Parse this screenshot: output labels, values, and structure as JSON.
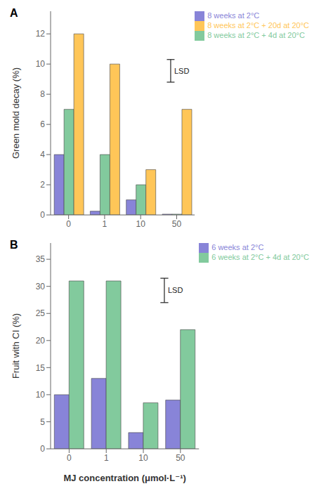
{
  "chart_data": [
    {
      "type": "bar",
      "title": "A",
      "y_label": "Green mold decay (%)",
      "categories": [
        "0",
        "1",
        "10",
        "50"
      ],
      "series": [
        {
          "name": "8 weeks at 2°C",
          "color": "#8884d8",
          "values": [
            4.0,
            0.25,
            1.0,
            0.05
          ]
        },
        {
          "name": "8 weeks at 2°C + 4d at 20°C",
          "color": "#82ca9d",
          "values": [
            7.0,
            4.0,
            2.0,
            0.05
          ]
        },
        {
          "name": "8 weeks at 2°C + 20d at 20°C",
          "color": "#ffc658",
          "values": [
            12.0,
            10.0,
            3.0,
            7.0
          ]
        }
      ],
      "ylim": [
        0,
        13.5
      ],
      "yticks": [
        0,
        2,
        4,
        6,
        8,
        10,
        12
      ],
      "legend": "upper right",
      "grid": false,
      "annotations": [
        {
          "text": "LSD",
          "x": 2.5,
          "y": [
            8.8,
            10.3
          ]
        }
      ]
    },
    {
      "type": "bar",
      "title": "B",
      "y_label": "Fruit with CI (%)",
      "x_label": "MJ concentration (μmol·L⁻¹)",
      "categories": [
        "0",
        "1",
        "10",
        "50"
      ],
      "series": [
        {
          "name": "6 weeks at 2°C",
          "color": "#8884d8",
          "values": [
            10.0,
            13.0,
            3.0,
            9.0
          ]
        },
        {
          "name": "6 weeks at 2°C + 4d at 20°C",
          "color": "#82ca9d",
          "values": [
            31.0,
            31.0,
            8.5,
            22.0
          ]
        }
      ],
      "ylim": [
        0,
        38
      ],
      "yticks": [
        0,
        5,
        10,
        15,
        20,
        25,
        30,
        35
      ],
      "legend": "upper right",
      "grid": false,
      "annotations": [
        {
          "text": "LSD",
          "x": 2.3,
          "y": [
            27.0,
            31.5
          ]
        }
      ]
    }
  ]
}
